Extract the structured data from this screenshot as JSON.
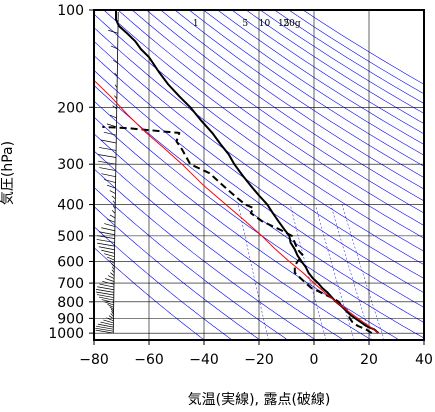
{
  "chart_data": {
    "type": "line",
    "xlabel": "気温(実線), 露点(破線)",
    "ylabel": "気圧(hPa)",
    "xlim": [
      -80,
      40
    ],
    "ylim": [
      1050,
      100
    ],
    "yscale": "log",
    "xticks": [
      "−80",
      "−60",
      "−40",
      "−20",
      "0",
      "20",
      "40"
    ],
    "xtick_values": [
      -80,
      -60,
      -40,
      -20,
      0,
      20,
      40
    ],
    "yticks": [
      "100",
      "200",
      "300",
      "400",
      "500",
      "600",
      "700",
      "800",
      "900",
      "1000"
    ],
    "ytick_values": [
      100,
      200,
      300,
      400,
      500,
      600,
      700,
      800,
      900,
      1000
    ],
    "mixing_ratio_labels": [
      "1",
      "5",
      "10",
      "15",
      "20g"
    ],
    "mixing_ratio_values": [
      1,
      5,
      10,
      15,
      20
    ],
    "mixing_ratio_label_x": [
      -43,
      -25,
      -18,
      -11,
      -8
    ],
    "colors": {
      "temperature": "#000000",
      "dewpoint": "#000000",
      "parcel": "#ff0000",
      "adiabats": "#0000ff",
      "grid": "#000000"
    },
    "series": [
      {
        "name": "",
        "style": "solid",
        "points": [
          [
            23.5,
            1000
          ],
          [
            22,
            975
          ],
          [
            19,
            950
          ],
          [
            17,
            925
          ],
          [
            15,
            900
          ],
          [
            13,
            875
          ],
          [
            11.5,
            850
          ],
          [
            10,
            825
          ],
          [
            8,
            800
          ],
          [
            6.5,
            775
          ],
          [
            5,
            750
          ],
          [
            3,
            725
          ],
          [
            1.5,
            700
          ],
          [
            -0.5,
            675
          ],
          [
            -2,
            650
          ],
          [
            -3,
            625
          ],
          [
            -4.5,
            600
          ],
          [
            -6,
            575
          ],
          [
            -7,
            550
          ],
          [
            -8.5,
            525
          ],
          [
            -9,
            500
          ],
          [
            -11,
            475
          ],
          [
            -13,
            450
          ],
          [
            -15,
            425
          ],
          [
            -17,
            400
          ],
          [
            -20,
            375
          ],
          [
            -23,
            350
          ],
          [
            -26,
            325
          ],
          [
            -29,
            300
          ],
          [
            -31,
            280
          ],
          [
            -34,
            260
          ],
          [
            -37,
            240
          ],
          [
            -41,
            220
          ],
          [
            -45,
            200
          ],
          [
            -49,
            185
          ],
          [
            -53,
            170
          ],
          [
            -56.5,
            155
          ],
          [
            -60,
            140
          ],
          [
            -63,
            132
          ],
          [
            -65,
            125
          ],
          [
            -68,
            118
          ],
          [
            -71,
            112
          ],
          [
            -72,
            107
          ],
          [
            -72,
            100
          ]
        ]
      },
      {
        "name": "",
        "style": "dashed",
        "points": [
          [
            21,
            1000
          ],
          [
            19,
            975
          ],
          [
            16,
            950
          ],
          [
            14,
            925
          ],
          [
            13,
            900
          ],
          [
            12.5,
            875
          ],
          [
            12,
            850
          ],
          [
            10,
            825
          ],
          [
            9,
            800
          ],
          [
            7,
            780
          ],
          [
            4,
            760
          ],
          [
            2,
            745
          ],
          [
            -1,
            725
          ],
          [
            -3,
            700
          ],
          [
            -5,
            675
          ],
          [
            -7,
            650
          ],
          [
            -7,
            620
          ],
          [
            -6,
            600
          ],
          [
            -4,
            575
          ],
          [
            -6,
            550
          ],
          [
            -8,
            500
          ],
          [
            -12,
            480
          ],
          [
            -19,
            450
          ],
          [
            -23,
            425
          ],
          [
            -22,
            410
          ],
          [
            -25,
            400
          ],
          [
            -29,
            375
          ],
          [
            -33,
            350
          ],
          [
            -38,
            320
          ],
          [
            -45,
            300
          ],
          [
            -48,
            270
          ],
          [
            -50,
            255
          ],
          [
            -49,
            240
          ],
          [
            -68,
            232
          ],
          [
            -77,
            230
          ]
        ]
      },
      {
        "name": "",
        "style": "solid",
        "points": [
          [
            23.5,
            1000
          ],
          [
            20,
            950
          ],
          [
            16,
            900
          ],
          [
            12,
            850
          ],
          [
            8,
            800
          ],
          [
            4,
            750
          ],
          [
            0,
            700
          ],
          [
            -4,
            650
          ],
          [
            -9,
            600
          ],
          [
            -14,
            550
          ],
          [
            -19,
            500
          ],
          [
            -25,
            450
          ],
          [
            -32,
            400
          ],
          [
            -40,
            350
          ],
          [
            -48,
            300
          ],
          [
            -54,
            270
          ],
          [
            -61,
            240
          ],
          [
            -68,
            210
          ],
          [
            -74,
            185
          ],
          [
            -80,
            165
          ]
        ]
      }
    ],
    "wind_barbs_x": -73
  }
}
